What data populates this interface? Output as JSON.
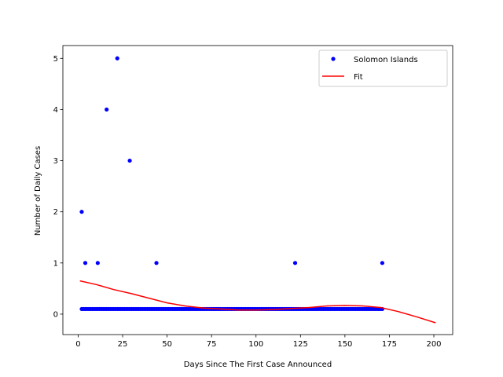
{
  "chart_data": {
    "type": "scatter",
    "title": "",
    "xlabel": "Days Since The First Case Announced",
    "ylabel": "Number of Daily Cases",
    "xlim": [
      -8.6,
      210.6
    ],
    "ylim": [
      -0.4,
      5.25
    ],
    "xticks": [
      0,
      25,
      50,
      75,
      100,
      125,
      150,
      175,
      200
    ],
    "yticks": [
      0,
      1,
      2,
      3,
      4,
      5
    ],
    "grid": false,
    "legend_position": "top-right",
    "series": [
      {
        "name": "Solomon Islands",
        "kind": "points",
        "color": "#0000ff",
        "outliers": [
          [
            2,
            2
          ],
          [
            4,
            1
          ],
          [
            11,
            1
          ],
          [
            16,
            4
          ],
          [
            22,
            5
          ],
          [
            29,
            3
          ],
          [
            44,
            1
          ],
          [
            122,
            1
          ],
          [
            171,
            1
          ]
        ],
        "baseline_value": 0.1,
        "baseline_x_range": [
          2,
          171
        ]
      },
      {
        "name": "Fit",
        "kind": "line",
        "color": "#ff0000",
        "x": [
          1,
          10,
          20,
          30,
          40,
          50,
          60,
          70,
          80,
          90,
          100,
          110,
          120,
          130,
          140,
          150,
          160,
          170,
          180,
          190,
          201
        ],
        "y": [
          0.65,
          0.58,
          0.48,
          0.4,
          0.31,
          0.22,
          0.16,
          0.12,
          0.1,
          0.08,
          0.08,
          0.09,
          0.11,
          0.13,
          0.16,
          0.17,
          0.16,
          0.13,
          0.05,
          -0.05,
          -0.17
        ]
      }
    ]
  }
}
